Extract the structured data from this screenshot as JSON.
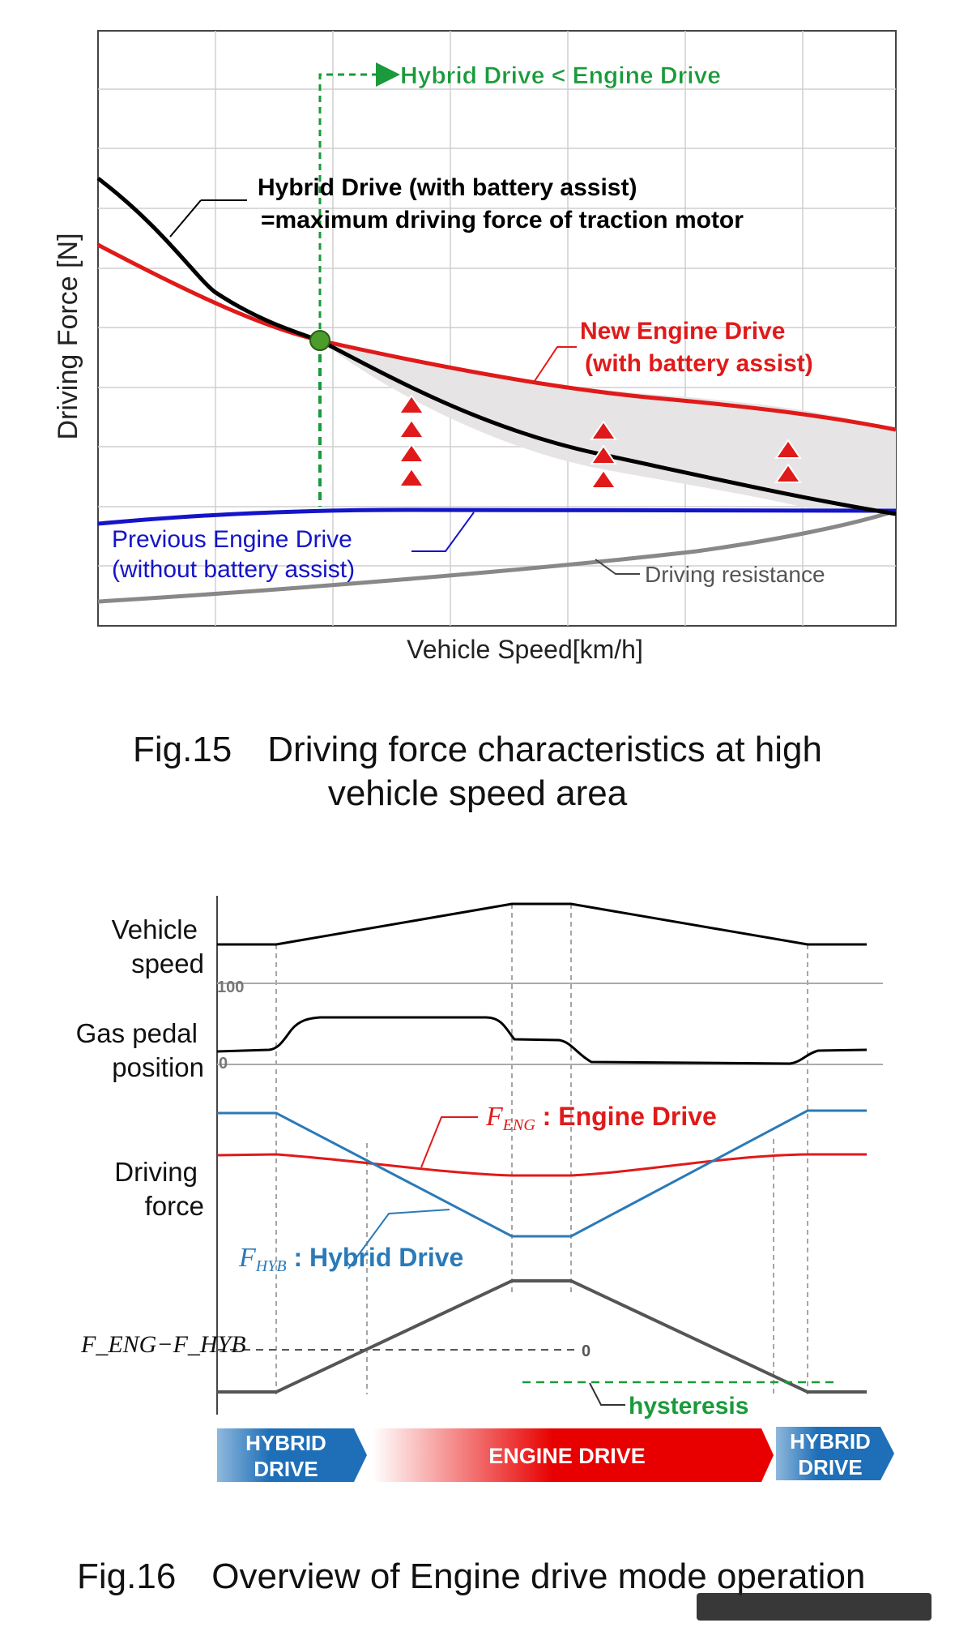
{
  "fig15": {
    "caption_number": "Fig.15",
    "caption_line1": "Driving force characteristics at high",
    "caption_line2": "vehicle speed area",
    "ylabel": "Driving Force [N]",
    "xlabel": "Vehicle Speed[km/h]",
    "label_hybrid_lt_engine": "Hybrid Drive < Engine Drive",
    "label_hybrid_line1": "Hybrid Drive (with battery assist)",
    "label_hybrid_line2": "=maximum driving force of traction motor",
    "label_new_engine_line1": "New Engine Drive",
    "label_new_engine_line2": "(with battery assist)",
    "label_prev_engine_line1": "Previous Engine Drive",
    "label_prev_engine_line2": "(without battery assist)",
    "label_resistance": "Driving resistance",
    "colors": {
      "hybrid": "#000000",
      "new_engine": "#e01a1a",
      "prev_engine": "#1414c8",
      "resistance": "#888888",
      "annotation": "#1a9a3a",
      "fill": "#e6e4e4",
      "marker": "#4c9c2c"
    }
  },
  "fig16": {
    "caption_number": "Fig.16",
    "caption_text": "Overview of Engine drive mode operation",
    "row_vehicle_speed_1": "Vehicle",
    "row_vehicle_speed_2": "speed",
    "row_gas_pedal_1": "Gas pedal",
    "row_gas_pedal_2": "position",
    "row_driving_force_1": "Driving",
    "row_driving_force_2": "force",
    "tick_100": "100",
    "tick_0": "0",
    "row_diff_label": "F_ENG−F_HYB",
    "diff_zero": "0",
    "label_feng_symbol": "F",
    "label_feng_sub": "ENG",
    "label_feng_text": "Engine Drive",
    "label_fhyb_symbol": "F",
    "label_fhyb_sub": "HYB",
    "label_fhyb_text": "Hybrid Drive",
    "label_hysteresis": "hysteresis",
    "bar_hybrid_left_1": "HYBRID",
    "bar_hybrid_left_2": "DRIVE",
    "bar_engine": "ENGINE DRIVE",
    "bar_hybrid_right_1": "HYBRID",
    "bar_hybrid_right_2": "DRIVE",
    "colors": {
      "engine": "#e01a1a",
      "hybrid": "#2a7ab8",
      "diff": "#555555",
      "hysteresis": "#1a9a3a",
      "bar_hybrid": "#1e6fb8",
      "bar_engine": "#e80000"
    }
  }
}
